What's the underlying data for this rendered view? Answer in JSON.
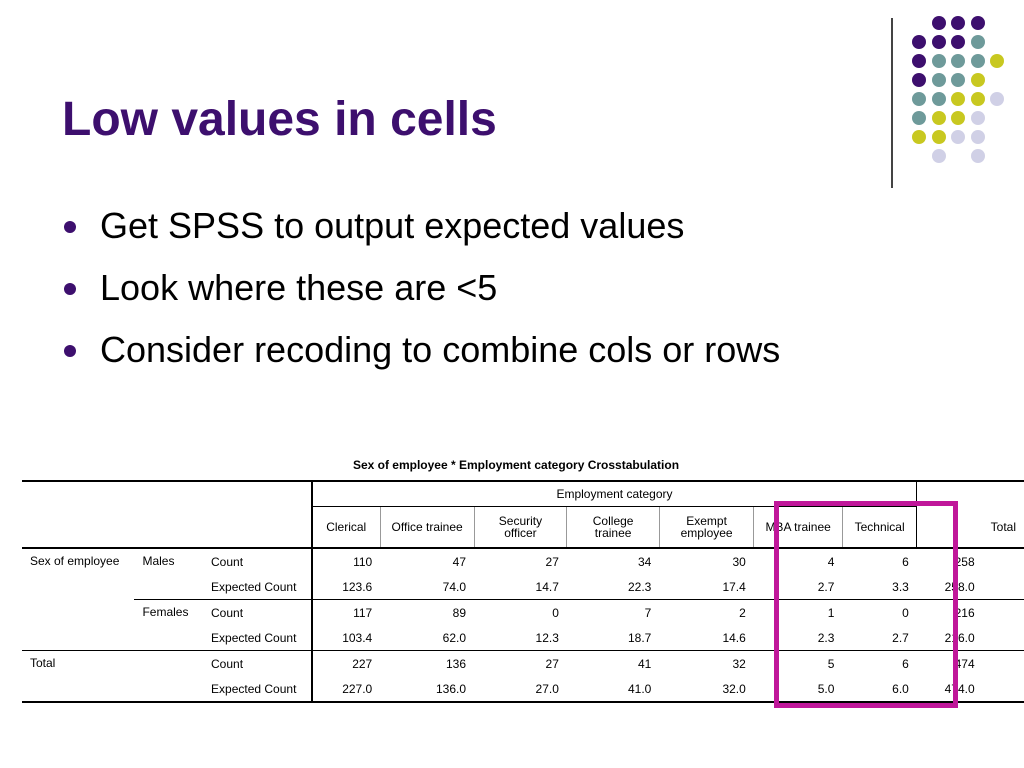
{
  "slide": {
    "title": "Low values in cells",
    "bullets": [
      "Get SPSS to output expected values",
      "Look where these are <5",
      "Consider recoding to combine cols or rows"
    ],
    "colors": {
      "title": "#3d0f6e",
      "highlight_box": "#c0179a",
      "dot_palette": [
        "#3d0f6e",
        "#6e9a9a",
        "#c8c820",
        "#d0d0e6"
      ]
    }
  },
  "table": {
    "caption": "Sex of employee * Employment category Crosstabulation",
    "group_header": "Employment category",
    "columns": [
      "Clerical",
      "Office trainee",
      "Security officer",
      "College trainee",
      "Exempt employee",
      "MBA trainee",
      "Technical",
      "Total"
    ],
    "row_labels": {
      "sex": "Sex of employee",
      "males": "Males",
      "females": "Females",
      "total": "Total",
      "count": "Count",
      "expected": "Expected Count"
    },
    "rows": [
      [
        "110",
        "47",
        "27",
        "34",
        "30",
        "4",
        "6",
        "258"
      ],
      [
        "123.6",
        "74.0",
        "14.7",
        "22.3",
        "17.4",
        "2.7",
        "3.3",
        "258.0"
      ],
      [
        "117",
        "89",
        "0",
        "7",
        "2",
        "1",
        "0",
        "216"
      ],
      [
        "103.4",
        "62.0",
        "12.3",
        "18.7",
        "14.6",
        "2.3",
        "2.7",
        "216.0"
      ],
      [
        "227",
        "136",
        "27",
        "41",
        "32",
        "5",
        "6",
        "474"
      ],
      [
        "227.0",
        "136.0",
        "27.0",
        "41.0",
        "32.0",
        "5.0",
        "6.0",
        "474.0"
      ]
    ]
  }
}
